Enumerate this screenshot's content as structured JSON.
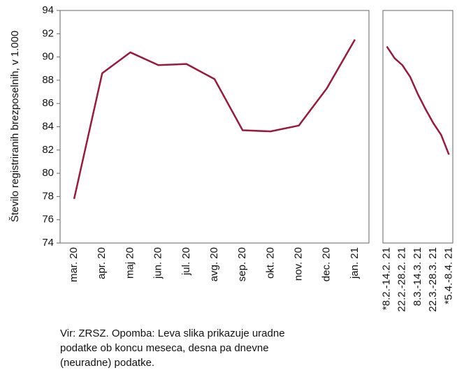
{
  "chart_data": [
    {
      "type": "line",
      "ylabel": "Število registriranih brezposelnih, v 1.000",
      "categories": [
        "mar. 20",
        "apr. 20",
        "maj 20",
        "jun. 20",
        "jul. 20",
        "avg. 20",
        "sep. 20",
        "okt. 20",
        "nov. 20",
        "dec. 20",
        "jan. 21"
      ],
      "values": [
        77.8,
        88.6,
        90.4,
        89.3,
        89.4,
        88.1,
        83.7,
        83.6,
        84.1,
        87.3,
        91.5
      ],
      "color": "#981b3c",
      "ylim": [
        74,
        94
      ],
      "yticks": [
        74,
        76,
        78,
        80,
        82,
        84,
        86,
        88,
        90,
        92,
        94
      ]
    },
    {
      "type": "line",
      "categories": [
        "*8.2.-14.2. 21",
        null,
        "22.2.-28.2. 21",
        null,
        "8.3.-14.3. 21",
        null,
        "22.3.-28.3. 21",
        null,
        "*5.4.-8.4. 21"
      ],
      "values": [
        90.9,
        89.9,
        89.3,
        88.3,
        86.8,
        85.5,
        84.3,
        83.3,
        81.6
      ],
      "color": "#981b3c",
      "ylim": [
        74,
        94
      ]
    }
  ],
  "note": [
    "Vir: ZRSZ. Opomba: Leva slika prikazuje uradne",
    "podatke ob koncu meseca, desna pa dnevne",
    "(neuradne) podatke."
  ]
}
